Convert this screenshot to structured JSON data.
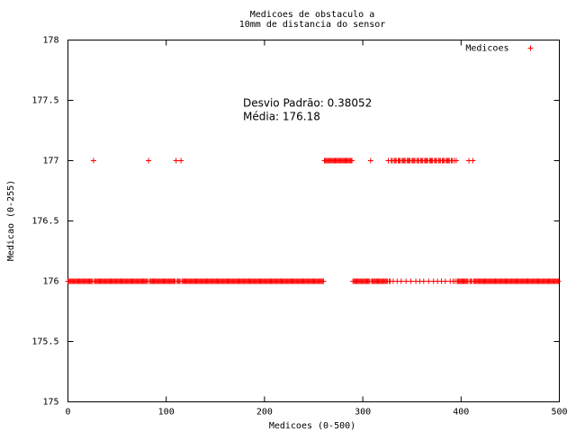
{
  "chart_data": {
    "type": "scatter",
    "title": [
      "Medicoes de obstaculo a",
      "10mm de distancia do sensor"
    ],
    "xlabel": "Medicoes (0-500)",
    "ylabel": "Medicao (0-255)",
    "annotations": [
      "Desvio Padrão: 0.38052",
      "Média: 176.18"
    ],
    "xlim": [
      0,
      500
    ],
    "xticks": [
      0,
      100,
      200,
      300,
      400,
      500
    ],
    "ylim": [
      175,
      178
    ],
    "yticks": [
      175,
      175.5,
      176,
      176.5,
      177,
      177.5,
      178
    ],
    "grid": false,
    "legend": "top-right",
    "series": [
      {
        "name": "Medicoes",
        "color": "#ff0000",
        "x": [
          0,
          1,
          2,
          3,
          4,
          5,
          6,
          7,
          8,
          9,
          10,
          11,
          12,
          13,
          14,
          15,
          16,
          17,
          18,
          19,
          20,
          21,
          22,
          23,
          24,
          25,
          26,
          27,
          28,
          29,
          30,
          31,
          32,
          33,
          34,
          35,
          36,
          37,
          38,
          39,
          40,
          41,
          42,
          43,
          44,
          45,
          46,
          47,
          48,
          49,
          50,
          51,
          52,
          53,
          54,
          55,
          56,
          57,
          58,
          59,
          60,
          61,
          62,
          63,
          64,
          65,
          66,
          67,
          68,
          69,
          70,
          71,
          72,
          73,
          74,
          75,
          76,
          77,
          78,
          79,
          80,
          81,
          82,
          83,
          84,
          85,
          86,
          87,
          88,
          89,
          90,
          91,
          92,
          93,
          94,
          95,
          96,
          97,
          98,
          99,
          100,
          101,
          102,
          103,
          104,
          105,
          106,
          107,
          108,
          109,
          110,
          111,
          112,
          113,
          114,
          115,
          116,
          117,
          118,
          119,
          120,
          121,
          122,
          123,
          124,
          125,
          126,
          127,
          128,
          129,
          130,
          131,
          132,
          133,
          134,
          135,
          136,
          137,
          138,
          139,
          140,
          141,
          142,
          143,
          144,
          145,
          146,
          147,
          148,
          149,
          150,
          151,
          152,
          153,
          154,
          155,
          156,
          157,
          158,
          159,
          160,
          161,
          162,
          163,
          164,
          165,
          166,
          167,
          168,
          169,
          170,
          171,
          172,
          173,
          174,
          175,
          176,
          177,
          178,
          179,
          180,
          181,
          182,
          183,
          184,
          185,
          186,
          187,
          188,
          189,
          190,
          191,
          192,
          193,
          194,
          195,
          196,
          197,
          198,
          199,
          200,
          201,
          202,
          203,
          204,
          205,
          206,
          207,
          208,
          209,
          210,
          211,
          212,
          213,
          214,
          215,
          216,
          217,
          218,
          219,
          220,
          221,
          222,
          223,
          224,
          225,
          226,
          227,
          228,
          229,
          230,
          231,
          232,
          233,
          234,
          235,
          236,
          237,
          238,
          239,
          240,
          241,
          242,
          243,
          244,
          245,
          246,
          247,
          248,
          249,
          250,
          251,
          252,
          253,
          254,
          255,
          256,
          257,
          258,
          259,
          260,
          261,
          262,
          263,
          264,
          265,
          266,
          267,
          268,
          269,
          270,
          271,
          272,
          273,
          274,
          275,
          276,
          277,
          278,
          279,
          280,
          281,
          282,
          283,
          284,
          285,
          286,
          287,
          288,
          289,
          290,
          291,
          292,
          293,
          294,
          295,
          296,
          297,
          298,
          299,
          300,
          301,
          302,
          303,
          304,
          305,
          306,
          307,
          308,
          309,
          310,
          311,
          312,
          313,
          314,
          315,
          316,
          317,
          318,
          319,
          320,
          321,
          322,
          323,
          324,
          325,
          326,
          327,
          328,
          329,
          330,
          331,
          332,
          333,
          334,
          335,
          336,
          337,
          338,
          339,
          340,
          341,
          342,
          343,
          344,
          345,
          346,
          347,
          348,
          349,
          350,
          351,
          352,
          353,
          354,
          355,
          356,
          357,
          358,
          359,
          360,
          361,
          362,
          363,
          364,
          365,
          366,
          367,
          368,
          369,
          370,
          371,
          372,
          373,
          374,
          375,
          376,
          377,
          378,
          379,
          380,
          381,
          382,
          383,
          384,
          385,
          386,
          387,
          388,
          389,
          390,
          391,
          392,
          393,
          394,
          395,
          396,
          397,
          398,
          399,
          400,
          401,
          402,
          403,
          404,
          405,
          406,
          407,
          408,
          409,
          410,
          411,
          412,
          413,
          414,
          415,
          416,
          417,
          418,
          419,
          420,
          421,
          422,
          423,
          424,
          425,
          426,
          427,
          428,
          429,
          430,
          431,
          432,
          433,
          434,
          435,
          436,
          437,
          438,
          439,
          440,
          441,
          442,
          443,
          444,
          445,
          446,
          447,
          448,
          449,
          450,
          451,
          452,
          453,
          454,
          455,
          456,
          457,
          458,
          459,
          460,
          461,
          462,
          463,
          464,
          465,
          466,
          467,
          468,
          469,
          470,
          471,
          472,
          473,
          474,
          475,
          476,
          477,
          478,
          479,
          480,
          481,
          482,
          483,
          484,
          485,
          486,
          487,
          488,
          489,
          490,
          491,
          492,
          493,
          494,
          495,
          496,
          497,
          498,
          499
        ],
        "values": [
          176,
          176,
          176,
          176,
          176,
          176,
          176,
          176,
          176,
          176,
          176,
          176,
          176,
          176,
          176,
          176,
          176,
          176,
          176,
          176,
          176,
          176,
          176,
          176,
          176,
          176,
          177,
          176,
          176,
          176,
          176,
          176,
          176,
          176,
          176,
          176,
          176,
          176,
          176,
          176,
          176,
          176,
          176,
          176,
          176,
          176,
          176,
          176,
          176,
          176,
          176,
          176,
          176,
          176,
          176,
          176,
          176,
          176,
          176,
          176,
          176,
          176,
          176,
          176,
          176,
          176,
          176,
          176,
          176,
          176,
          176,
          176,
          176,
          176,
          176,
          176,
          176,
          176,
          176,
          176,
          176,
          176,
          177,
          176,
          176,
          176,
          176,
          176,
          176,
          176,
          176,
          176,
          176,
          176,
          176,
          176,
          176,
          176,
          176,
          176,
          176,
          176,
          176,
          176,
          176,
          176,
          176,
          176,
          176,
          176,
          177,
          176,
          176,
          176,
          176,
          177,
          176,
          176,
          176,
          176,
          176,
          176,
          176,
          176,
          176,
          176,
          176,
          176,
          176,
          176,
          176,
          176,
          176,
          176,
          176,
          176,
          176,
          176,
          176,
          176,
          176,
          176,
          176,
          176,
          176,
          176,
          176,
          176,
          176,
          176,
          176,
          176,
          176,
          176,
          176,
          176,
          176,
          176,
          176,
          176,
          176,
          176,
          176,
          176,
          176,
          176,
          176,
          176,
          176,
          176,
          176,
          176,
          176,
          176,
          176,
          176,
          176,
          176,
          176,
          176,
          176,
          176,
          176,
          176,
          176,
          176,
          176,
          176,
          176,
          176,
          176,
          176,
          176,
          176,
          176,
          176,
          176,
          176,
          176,
          176,
          176,
          176,
          176,
          176,
          176,
          176,
          176,
          176,
          176,
          176,
          176,
          176,
          176,
          176,
          176,
          176,
          176,
          176,
          176,
          176,
          176,
          176,
          176,
          176,
          176,
          176,
          176,
          176,
          176,
          176,
          176,
          176,
          176,
          176,
          176,
          176,
          176,
          176,
          176,
          176,
          176,
          176,
          176,
          176,
          176,
          176,
          176,
          176,
          176,
          176,
          176,
          176,
          176,
          176,
          176,
          176,
          176,
          176,
          176,
          176,
          176,
          177,
          177,
          177,
          177,
          177,
          177,
          177,
          177,
          177,
          177,
          177,
          177,
          177,
          177,
          177,
          177,
          177,
          177,
          177,
          177,
          177,
          177,
          177,
          177,
          177,
          177,
          177,
          177,
          177,
          176,
          176,
          176,
          176,
          176,
          176,
          176,
          176,
          176,
          176,
          176,
          176,
          176,
          176,
          176,
          176,
          176,
          176,
          177,
          176,
          176,
          176,
          176,
          176,
          176,
          176,
          176,
          176,
          176,
          176,
          176,
          176,
          176,
          176,
          176,
          176,
          177,
          176,
          176,
          177,
          177,
          176,
          177,
          177,
          177,
          176,
          177,
          177,
          177,
          176,
          177,
          177,
          177,
          177,
          176,
          177,
          177,
          177,
          177,
          176,
          177,
          177,
          177,
          177,
          176,
          177,
          177,
          177,
          176,
          177,
          177,
          177,
          176,
          177,
          177,
          177,
          177,
          176,
          177,
          177,
          177,
          177,
          176,
          177,
          177,
          177,
          176,
          177,
          177,
          177,
          176,
          177,
          177,
          177,
          176,
          177,
          177,
          177,
          177,
          176,
          177,
          177,
          176,
          177,
          176,
          177,
          176,
          176,
          176,
          176,
          176,
          176,
          176,
          176,
          176,
          176,
          176,
          176,
          177,
          176,
          176,
          176,
          177,
          176,
          176,
          176,
          176,
          176,
          176,
          176,
          176,
          176,
          176,
          176,
          176,
          176,
          176,
          176,
          176,
          176,
          176,
          176,
          176,
          176,
          176,
          176,
          176,
          176,
          176,
          176,
          176,
          176,
          176,
          176,
          176,
          176,
          176,
          176,
          176,
          176,
          176,
          176,
          176,
          176,
          176,
          176,
          176,
          176,
          176,
          176,
          176,
          176,
          176,
          176,
          176,
          176,
          176,
          176,
          176,
          176,
          176,
          176,
          176,
          176,
          176,
          176,
          176,
          176,
          176,
          176,
          176,
          176,
          176,
          176,
          176,
          176,
          176,
          176,
          176,
          176,
          176,
          176,
          176,
          176,
          176,
          176,
          176,
          176,
          176,
          176
        ]
      }
    ]
  }
}
